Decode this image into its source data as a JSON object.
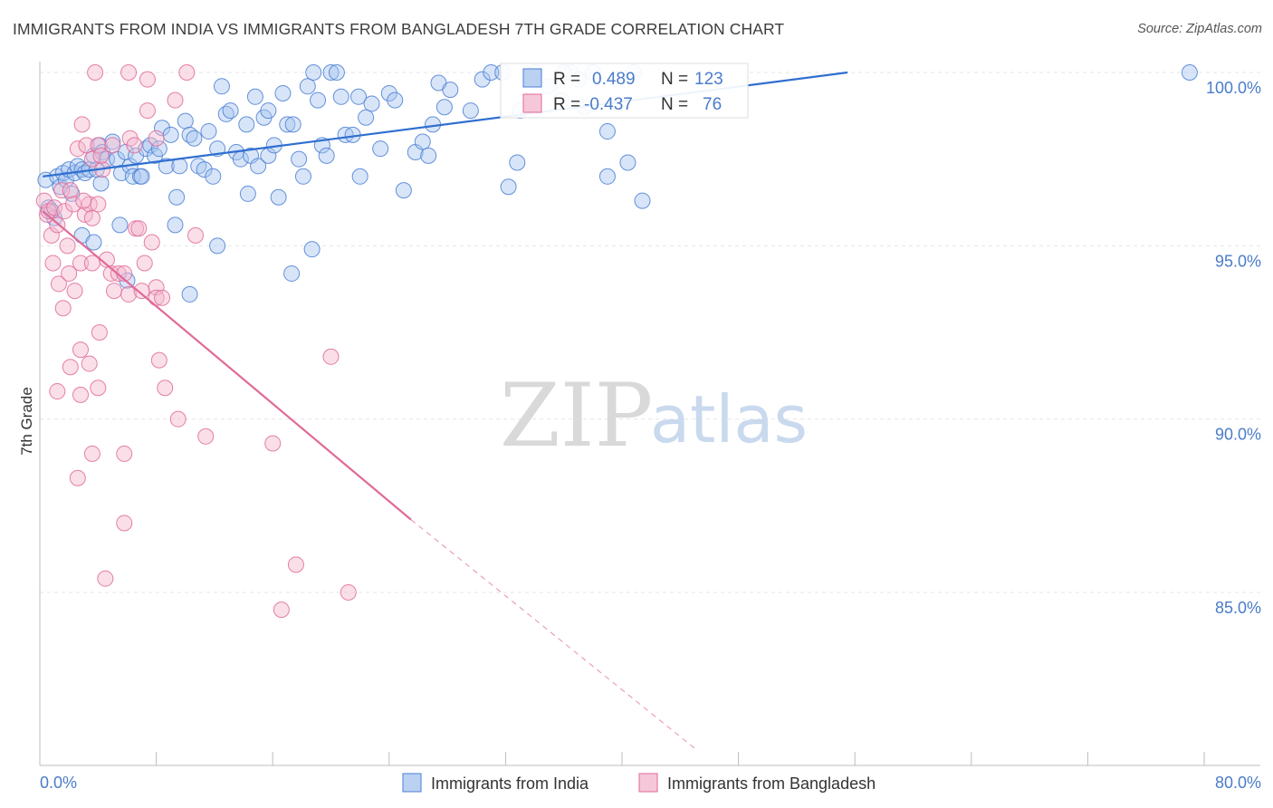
{
  "title": "IMMIGRANTS FROM INDIA VS IMMIGRANTS FROM BANGLADESH 7TH GRADE CORRELATION CHART",
  "source": "Source: ZipAtlas.com",
  "watermark": {
    "zip": "ZIP",
    "atlas": "atlas"
  },
  "colors": {
    "india": "#4a7fd4",
    "india_fill": "#a9c6ef",
    "bangladesh": "#e06a98",
    "bangladesh_fill": "#f4b9cf",
    "tick": "#4a7cc9"
  },
  "chart_data": {
    "type": "scatter",
    "title": "IMMIGRANTS FROM INDIA VS IMMIGRANTS FROM BANGLADESH 7TH GRADE CORRELATION CHART",
    "xlabel": "",
    "ylabel": "7th Grade",
    "xlim": [
      0,
      80
    ],
    "ylim": [
      80.5,
      100.8
    ],
    "x_tick_labels": [
      "0.0%",
      "80.0%"
    ],
    "y_ticks": [
      85,
      90,
      95,
      100
    ],
    "y_tick_labels": [
      "85.0%",
      "90.0%",
      "95.0%",
      "100.0%"
    ],
    "grid": true,
    "legend_position": "bottom-center",
    "stats": [
      {
        "r_label": "R =",
        "r": "0.489",
        "n_label": "N =",
        "n": "123"
      },
      {
        "r_label": "R =",
        "r": "-0.437",
        "n_label": "N =",
        "n": "76"
      }
    ],
    "series": [
      {
        "name": "Immigrants from India",
        "trend": {
          "x": [
            0.2,
            55.5
          ],
          "y": [
            97.0,
            100.0
          ]
        },
        "points": [
          [
            0.4,
            96.9
          ],
          [
            0.6,
            96.1
          ],
          [
            0.8,
            96.0
          ],
          [
            1.0,
            95.8
          ],
          [
            1.2,
            97.0
          ],
          [
            1.4,
            96.7
          ],
          [
            1.6,
            97.1
          ],
          [
            1.8,
            96.9
          ],
          [
            2.0,
            97.2
          ],
          [
            2.2,
            96.5
          ],
          [
            2.4,
            97.1
          ],
          [
            2.6,
            97.3
          ],
          [
            2.9,
            97.2
          ],
          [
            3.1,
            97.1
          ],
          [
            3.4,
            97.2
          ],
          [
            3.7,
            97.6
          ],
          [
            3.9,
            97.2
          ],
          [
            4.1,
            97.9
          ],
          [
            4.3,
            97.7
          ],
          [
            4.2,
            96.8
          ],
          [
            4.6,
            97.5
          ],
          [
            5.0,
            98.0
          ],
          [
            5.3,
            97.5
          ],
          [
            5.6,
            97.1
          ],
          [
            5.9,
            97.7
          ],
          [
            6.2,
            97.3
          ],
          [
            6.6,
            97.6
          ],
          [
            6.4,
            97.0
          ],
          [
            6.9,
            97.0
          ],
          [
            7.3,
            97.8
          ],
          [
            7.6,
            97.9
          ],
          [
            7.9,
            97.6
          ],
          [
            8.2,
            97.8
          ],
          [
            8.4,
            98.4
          ],
          [
            8.7,
            97.3
          ],
          [
            9.0,
            98.2
          ],
          [
            9.4,
            96.4
          ],
          [
            9.6,
            97.3
          ],
          [
            10.0,
            98.6
          ],
          [
            10.3,
            98.2
          ],
          [
            10.6,
            98.1
          ],
          [
            10.9,
            97.3
          ],
          [
            11.3,
            97.2
          ],
          [
            11.6,
            98.3
          ],
          [
            11.9,
            97.0
          ],
          [
            12.2,
            97.8
          ],
          [
            12.5,
            99.6
          ],
          [
            12.8,
            98.8
          ],
          [
            13.1,
            98.9
          ],
          [
            13.5,
            97.7
          ],
          [
            13.8,
            97.5
          ],
          [
            14.2,
            98.5
          ],
          [
            14.5,
            97.6
          ],
          [
            14.8,
            99.3
          ],
          [
            15.0,
            97.3
          ],
          [
            15.4,
            98.7
          ],
          [
            15.7,
            97.6
          ],
          [
            16.1,
            97.9
          ],
          [
            16.4,
            96.4
          ],
          [
            16.7,
            99.4
          ],
          [
            17.0,
            98.5
          ],
          [
            17.4,
            98.5
          ],
          [
            17.8,
            97.5
          ],
          [
            18.1,
            97.0
          ],
          [
            18.4,
            99.6
          ],
          [
            18.8,
            100.0
          ],
          [
            19.1,
            99.2
          ],
          [
            19.4,
            97.9
          ],
          [
            19.7,
            97.6
          ],
          [
            20.0,
            100.0
          ],
          [
            20.4,
            100.0
          ],
          [
            20.7,
            99.3
          ],
          [
            21.0,
            98.2
          ],
          [
            21.5,
            98.2
          ],
          [
            21.9,
            99.3
          ],
          [
            22.4,
            98.7
          ],
          [
            22.8,
            99.1
          ],
          [
            12.2,
            95.0
          ],
          [
            17.3,
            94.2
          ],
          [
            9.3,
            95.6
          ],
          [
            10.3,
            93.6
          ],
          [
            14.3,
            96.5
          ],
          [
            18.7,
            94.9
          ],
          [
            22.0,
            97.0
          ],
          [
            23.4,
            97.8
          ],
          [
            24.0,
            99.4
          ],
          [
            24.4,
            99.2
          ],
          [
            25.0,
            96.6
          ],
          [
            25.8,
            97.7
          ],
          [
            26.3,
            98.0
          ],
          [
            26.7,
            97.6
          ],
          [
            27.0,
            98.5
          ],
          [
            27.4,
            99.7
          ],
          [
            27.8,
            99.0
          ],
          [
            28.2,
            99.5
          ],
          [
            29.6,
            98.9
          ],
          [
            30.4,
            99.8
          ],
          [
            31.0,
            100.0
          ],
          [
            31.8,
            100.0
          ],
          [
            32.2,
            96.7
          ],
          [
            32.8,
            97.4
          ],
          [
            33.0,
            98.9
          ],
          [
            34.0,
            100.0
          ],
          [
            35.0,
            99.6
          ],
          [
            35.8,
            99.2
          ],
          [
            36.5,
            100.0
          ],
          [
            37.4,
            99.0
          ],
          [
            38.0,
            100.0
          ],
          [
            39.0,
            98.3
          ],
          [
            39.7,
            99.8
          ],
          [
            40.4,
            97.4
          ],
          [
            40.8,
            100.0
          ],
          [
            41.4,
            96.3
          ],
          [
            39.0,
            97.0
          ],
          [
            36.0,
            100.0
          ],
          [
            37.0,
            99.8
          ],
          [
            2.9,
            95.3
          ],
          [
            3.7,
            95.1
          ],
          [
            5.5,
            95.6
          ],
          [
            7.0,
            97.0
          ],
          [
            15.7,
            98.9
          ],
          [
            79.0,
            100.0
          ],
          [
            6.0,
            94.0
          ]
        ]
      },
      {
        "name": "Immigrants from Bangladesh",
        "trend": {
          "x": [
            0.2,
            25.5
          ],
          "y": [
            96.0,
            87.1
          ],
          "dash_x": [
            25.5,
            45.0
          ],
          "dash_y": [
            87.1,
            80.5
          ]
        },
        "points": [
          [
            0.3,
            96.3
          ],
          [
            0.5,
            95.9
          ],
          [
            0.6,
            96.0
          ],
          [
            0.8,
            95.3
          ],
          [
            1.0,
            96.1
          ],
          [
            1.2,
            95.6
          ],
          [
            1.5,
            96.6
          ],
          [
            1.7,
            96.0
          ],
          [
            1.9,
            95.0
          ],
          [
            2.1,
            96.6
          ],
          [
            2.3,
            96.2
          ],
          [
            0.9,
            94.5
          ],
          [
            1.3,
            93.9
          ],
          [
            1.6,
            93.2
          ],
          [
            2.0,
            94.2
          ],
          [
            2.4,
            93.7
          ],
          [
            2.8,
            94.5
          ],
          [
            3.1,
            95.9
          ],
          [
            3.4,
            96.2
          ],
          [
            3.6,
            95.8
          ],
          [
            2.6,
            97.8
          ],
          [
            2.9,
            98.5
          ],
          [
            3.2,
            97.9
          ],
          [
            3.6,
            97.5
          ],
          [
            4.0,
            97.9
          ],
          [
            4.3,
            97.2
          ],
          [
            4.6,
            94.6
          ],
          [
            4.9,
            94.2
          ],
          [
            5.1,
            93.7
          ],
          [
            5.4,
            94.2
          ],
          [
            5.8,
            94.2
          ],
          [
            6.1,
            93.6
          ],
          [
            6.6,
            95.5
          ],
          [
            7.0,
            93.7
          ],
          [
            7.2,
            94.5
          ],
          [
            7.7,
            95.1
          ],
          [
            8.0,
            93.8
          ],
          [
            8.0,
            93.5
          ],
          [
            8.4,
            93.5
          ],
          [
            6.2,
            98.1
          ],
          [
            5.0,
            97.9
          ],
          [
            4.2,
            97.6
          ],
          [
            6.5,
            97.9
          ],
          [
            7.4,
            98.9
          ],
          [
            8.0,
            98.1
          ],
          [
            9.3,
            99.2
          ],
          [
            10.1,
            100.0
          ],
          [
            3.8,
            100.0
          ],
          [
            6.1,
            100.0
          ],
          [
            7.4,
            99.8
          ],
          [
            4.1,
            92.5
          ],
          [
            2.8,
            92.0
          ],
          [
            3.4,
            91.6
          ],
          [
            2.1,
            91.5
          ],
          [
            1.2,
            90.8
          ],
          [
            2.8,
            90.7
          ],
          [
            4.0,
            90.9
          ],
          [
            8.2,
            91.7
          ],
          [
            8.6,
            90.9
          ],
          [
            9.5,
            90.0
          ],
          [
            3.6,
            89.0
          ],
          [
            5.8,
            89.0
          ],
          [
            2.6,
            88.3
          ],
          [
            11.4,
            89.5
          ],
          [
            16.0,
            89.3
          ],
          [
            20.0,
            91.8
          ],
          [
            5.8,
            87.0
          ],
          [
            4.5,
            85.4
          ],
          [
            17.6,
            85.8
          ],
          [
            21.2,
            85.0
          ],
          [
            16.6,
            84.5
          ],
          [
            10.7,
            95.3
          ],
          [
            4.0,
            96.2
          ],
          [
            3.0,
            96.3
          ],
          [
            6.8,
            95.5
          ],
          [
            3.6,
            94.5
          ]
        ]
      }
    ]
  }
}
